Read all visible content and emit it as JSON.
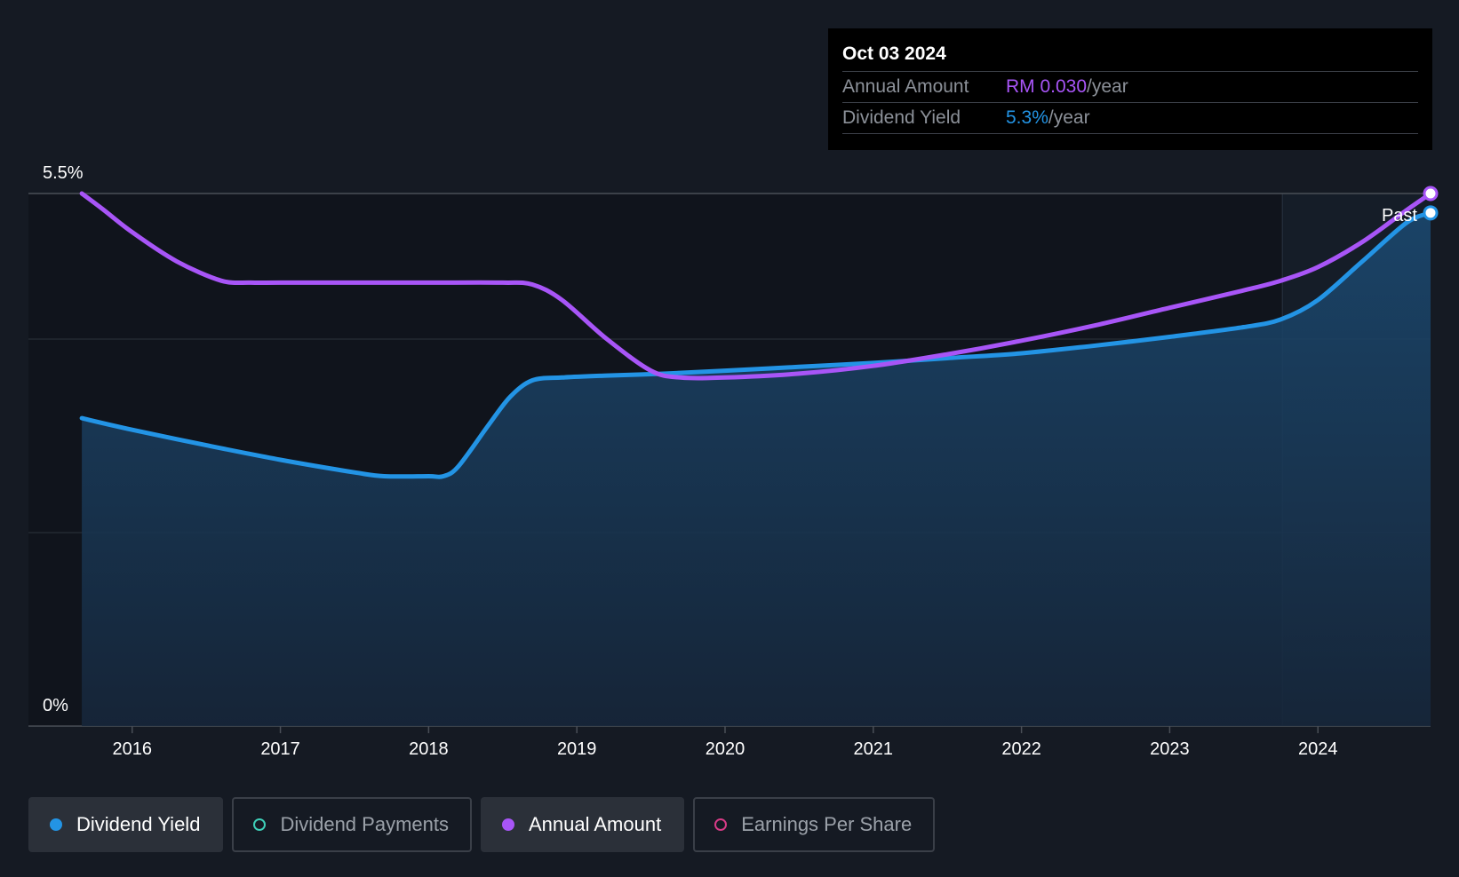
{
  "tooltip": {
    "date": "Oct 03 2024",
    "annual_label": "Annual Amount",
    "annual_value": "RM 0.030",
    "annual_unit": "/year",
    "yield_label": "Dividend Yield",
    "yield_value": "5.3%",
    "yield_unit": "/year"
  },
  "past_label": "Past",
  "legend": [
    {
      "label": "Dividend Yield",
      "color": "#2394e5",
      "active": true
    },
    {
      "label": "Dividend Payments",
      "color": "#3ecfb8",
      "active": false
    },
    {
      "label": "Annual Amount",
      "color": "#a855f7",
      "active": true
    },
    {
      "label": "Earnings Per Share",
      "color": "#d63b86",
      "active": false
    }
  ],
  "colors": {
    "background": "#151a23",
    "dividend_yield": "#2394e5",
    "annual_amount": "#a855f7"
  },
  "chart_data": {
    "type": "line",
    "title": "",
    "xlabel": "",
    "ylabel": "",
    "ylim": [
      0,
      5.5
    ],
    "y_tick_labels": [
      "0%",
      "5.5%"
    ],
    "xlim": [
      2015.3,
      2024.76
    ],
    "x_tick_values": [
      2016,
      2017,
      2018,
      2019,
      2020,
      2021,
      2022,
      2023,
      2024
    ],
    "x_tick_labels": [
      "2016",
      "2017",
      "2018",
      "2019",
      "2020",
      "2021",
      "2022",
      "2023",
      "2024"
    ],
    "grid": true,
    "series": [
      {
        "name": "Dividend Yield",
        "color": "#2394e5",
        "filled": true,
        "points": [
          [
            2015.66,
            3.18
          ],
          [
            2016.0,
            3.06
          ],
          [
            2016.5,
            2.9
          ],
          [
            2017.0,
            2.75
          ],
          [
            2017.5,
            2.62
          ],
          [
            2017.7,
            2.58
          ],
          [
            2018.0,
            2.58
          ],
          [
            2018.1,
            2.58
          ],
          [
            2018.2,
            2.68
          ],
          [
            2018.4,
            3.1
          ],
          [
            2018.55,
            3.4
          ],
          [
            2018.7,
            3.57
          ],
          [
            2018.9,
            3.6
          ],
          [
            2019.2,
            3.62
          ],
          [
            2019.6,
            3.64
          ],
          [
            2020.0,
            3.67
          ],
          [
            2020.5,
            3.71
          ],
          [
            2021.0,
            3.75
          ],
          [
            2021.5,
            3.8
          ],
          [
            2022.0,
            3.85
          ],
          [
            2022.5,
            3.93
          ],
          [
            2023.0,
            4.02
          ],
          [
            2023.5,
            4.12
          ],
          [
            2023.75,
            4.2
          ],
          [
            2024.0,
            4.4
          ],
          [
            2024.3,
            4.8
          ],
          [
            2024.6,
            5.2
          ],
          [
            2024.76,
            5.3
          ]
        ]
      },
      {
        "name": "Annual Amount",
        "color": "#a855f7",
        "filled": false,
        "points": [
          [
            2015.66,
            5.5
          ],
          [
            2015.8,
            5.34
          ],
          [
            2016.0,
            5.1
          ],
          [
            2016.3,
            4.8
          ],
          [
            2016.6,
            4.6
          ],
          [
            2016.8,
            4.58
          ],
          [
            2017.0,
            4.58
          ],
          [
            2017.5,
            4.58
          ],
          [
            2018.0,
            4.58
          ],
          [
            2018.5,
            4.58
          ],
          [
            2018.7,
            4.56
          ],
          [
            2018.9,
            4.4
          ],
          [
            2019.2,
            4.0
          ],
          [
            2019.5,
            3.67
          ],
          [
            2019.7,
            3.6
          ],
          [
            2020.0,
            3.6
          ],
          [
            2020.5,
            3.64
          ],
          [
            2021.0,
            3.72
          ],
          [
            2021.5,
            3.84
          ],
          [
            2022.0,
            3.98
          ],
          [
            2022.5,
            4.14
          ],
          [
            2023.0,
            4.32
          ],
          [
            2023.5,
            4.5
          ],
          [
            2023.75,
            4.6
          ],
          [
            2024.0,
            4.74
          ],
          [
            2024.3,
            5.0
          ],
          [
            2024.6,
            5.33
          ],
          [
            2024.76,
            5.5
          ]
        ]
      }
    ],
    "past_region_start": 2023.76
  }
}
